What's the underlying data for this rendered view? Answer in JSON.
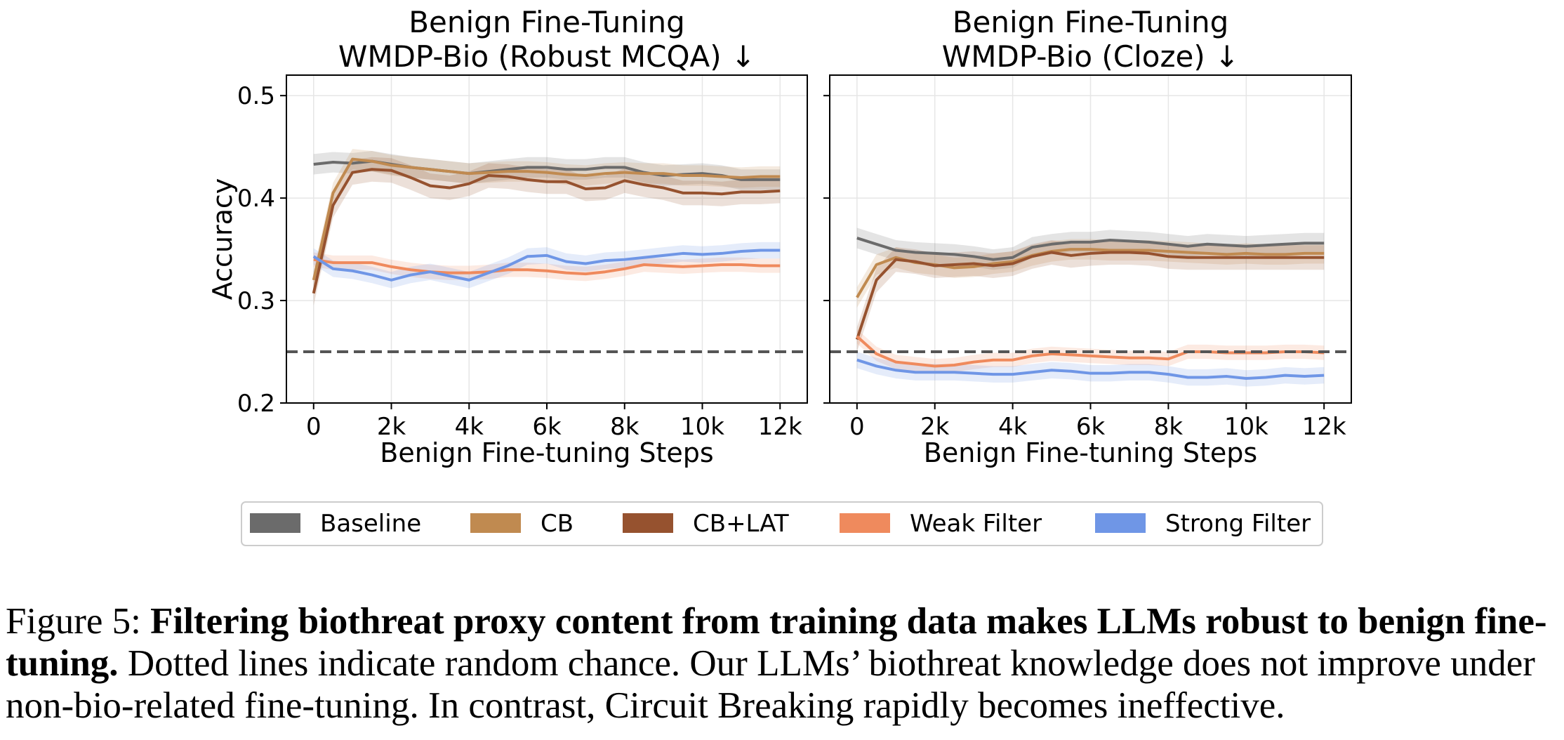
{
  "chart_data": [
    {
      "type": "line",
      "title": "Benign Fine-Tuning",
      "subtitle": "WMDP-Bio (Robust MCQA)  ↓",
      "xlabel": "Benign Fine-tuning Steps",
      "ylabel": "Accuracy",
      "xlim": [
        -700,
        12700
      ],
      "ylim": [
        0.2,
        0.52
      ],
      "xticks": [
        0,
        2000,
        4000,
        6000,
        8000,
        10000,
        12000
      ],
      "xtick_labels": [
        "0",
        "2k",
        "4k",
        "6k",
        "8k",
        "10k",
        "12k"
      ],
      "yticks": [
        0.2,
        0.3,
        0.4,
        0.5
      ],
      "ytick_labels": [
        "0.2",
        "0.3",
        "0.4",
        "0.5"
      ],
      "grid": true,
      "random_chance": 0.25,
      "x": [
        0,
        500,
        1000,
        1500,
        2000,
        2500,
        3000,
        3500,
        4000,
        4500,
        5000,
        5500,
        6000,
        6500,
        7000,
        7500,
        8000,
        8500,
        9000,
        9500,
        10000,
        10500,
        11000,
        11500,
        12000
      ],
      "series": [
        {
          "name": "Baseline",
          "values": [
            0.433,
            0.435,
            0.434,
            0.436,
            0.433,
            0.43,
            0.428,
            0.426,
            0.424,
            0.426,
            0.428,
            0.43,
            0.43,
            0.428,
            0.428,
            0.43,
            0.43,
            0.425,
            0.422,
            0.423,
            0.424,
            0.422,
            0.418,
            0.418,
            0.418
          ]
        },
        {
          "name": "CB",
          "values": [
            0.32,
            0.405,
            0.438,
            0.436,
            0.432,
            0.43,
            0.428,
            0.426,
            0.424,
            0.425,
            0.426,
            0.426,
            0.425,
            0.423,
            0.422,
            0.424,
            0.425,
            0.424,
            0.424,
            0.422,
            0.422,
            0.421,
            0.42,
            0.421,
            0.421
          ]
        },
        {
          "name": "CB+LAT",
          "values": [
            0.307,
            0.393,
            0.425,
            0.428,
            0.427,
            0.42,
            0.412,
            0.41,
            0.414,
            0.422,
            0.421,
            0.418,
            0.416,
            0.416,
            0.409,
            0.41,
            0.417,
            0.413,
            0.41,
            0.405,
            0.405,
            0.404,
            0.406,
            0.406,
            0.407
          ]
        },
        {
          "name": "Weak Filter",
          "values": [
            0.34,
            0.337,
            0.337,
            0.337,
            0.333,
            0.33,
            0.328,
            0.327,
            0.327,
            0.328,
            0.33,
            0.33,
            0.329,
            0.327,
            0.326,
            0.328,
            0.331,
            0.335,
            0.334,
            0.333,
            0.334,
            0.335,
            0.335,
            0.334,
            0.334
          ]
        },
        {
          "name": "Strong Filter",
          "values": [
            0.343,
            0.331,
            0.329,
            0.325,
            0.32,
            0.325,
            0.328,
            0.324,
            0.32,
            0.327,
            0.334,
            0.343,
            0.344,
            0.338,
            0.336,
            0.339,
            0.34,
            0.342,
            0.344,
            0.346,
            0.345,
            0.346,
            0.348,
            0.349,
            0.349
          ]
        }
      ]
    },
    {
      "type": "line",
      "title": "Benign Fine-Tuning",
      "subtitle": "WMDP-Bio (Cloze)  ↓",
      "xlabel": "Benign Fine-tuning Steps",
      "ylabel": "",
      "xlim": [
        -700,
        12700
      ],
      "ylim": [
        0.2,
        0.52
      ],
      "xticks": [
        0,
        2000,
        4000,
        6000,
        8000,
        10000,
        12000
      ],
      "xtick_labels": [
        "0",
        "2k",
        "4k",
        "6k",
        "8k",
        "10k",
        "12k"
      ],
      "yticks": [
        0.2,
        0.3,
        0.4,
        0.5
      ],
      "ytick_labels": [],
      "grid": true,
      "random_chance": 0.25,
      "x": [
        0,
        500,
        1000,
        1500,
        2000,
        2500,
        3000,
        3500,
        4000,
        4500,
        5000,
        5500,
        6000,
        6500,
        7000,
        7500,
        8000,
        8500,
        9000,
        9500,
        10000,
        10500,
        11000,
        11500,
        12000
      ],
      "series": [
        {
          "name": "Baseline",
          "values": [
            0.361,
            0.355,
            0.349,
            0.347,
            0.346,
            0.345,
            0.343,
            0.34,
            0.342,
            0.352,
            0.355,
            0.357,
            0.357,
            0.359,
            0.358,
            0.357,
            0.355,
            0.353,
            0.355,
            0.354,
            0.353,
            0.354,
            0.355,
            0.356,
            0.356
          ]
        },
        {
          "name": "CB",
          "values": [
            0.303,
            0.335,
            0.342,
            0.337,
            0.335,
            0.332,
            0.333,
            0.336,
            0.338,
            0.344,
            0.348,
            0.35,
            0.35,
            0.349,
            0.349,
            0.349,
            0.348,
            0.347,
            0.346,
            0.345,
            0.346,
            0.345,
            0.345,
            0.346,
            0.346
          ]
        },
        {
          "name": "CB+LAT",
          "values": [
            0.262,
            0.32,
            0.34,
            0.338,
            0.334,
            0.335,
            0.336,
            0.334,
            0.336,
            0.343,
            0.347,
            0.344,
            0.346,
            0.347,
            0.347,
            0.346,
            0.343,
            0.342,
            0.342,
            0.342,
            0.342,
            0.342,
            0.342,
            0.342,
            0.342
          ]
        },
        {
          "name": "Weak Filter",
          "values": [
            0.265,
            0.248,
            0.24,
            0.238,
            0.236,
            0.237,
            0.24,
            0.242,
            0.242,
            0.246,
            0.248,
            0.247,
            0.246,
            0.245,
            0.244,
            0.244,
            0.243,
            0.25,
            0.25,
            0.249,
            0.249,
            0.249,
            0.25,
            0.25,
            0.249
          ]
        },
        {
          "name": "Strong Filter",
          "values": [
            0.242,
            0.236,
            0.232,
            0.23,
            0.23,
            0.23,
            0.229,
            0.228,
            0.228,
            0.23,
            0.232,
            0.231,
            0.229,
            0.229,
            0.23,
            0.23,
            0.228,
            0.225,
            0.225,
            0.226,
            0.224,
            0.225,
            0.227,
            0.226,
            0.227
          ]
        }
      ]
    }
  ],
  "legend": {
    "placement": "bottom",
    "items": [
      {
        "label": "Baseline",
        "color": "#6b6b6b"
      },
      {
        "label": "CB",
        "color": "#c08a50"
      },
      {
        "label": "CB+LAT",
        "color": "#96522f"
      },
      {
        "label": "Weak Filter",
        "color": "#ef8a5d"
      },
      {
        "label": "Strong Filter",
        "color": "#6f96e6"
      }
    ]
  },
  "caption": {
    "label": "Figure 5: ",
    "bold": "Filtering biothreat proxy content from training data makes LLMs robust to benign fine-tuning.",
    "rest": " Dotted lines indicate random chance. Our LLMs’ biothreat knowledge does not improve under non-bio-related fine-tuning. In contrast, Circuit Breaking rapidly becomes ineffective."
  }
}
